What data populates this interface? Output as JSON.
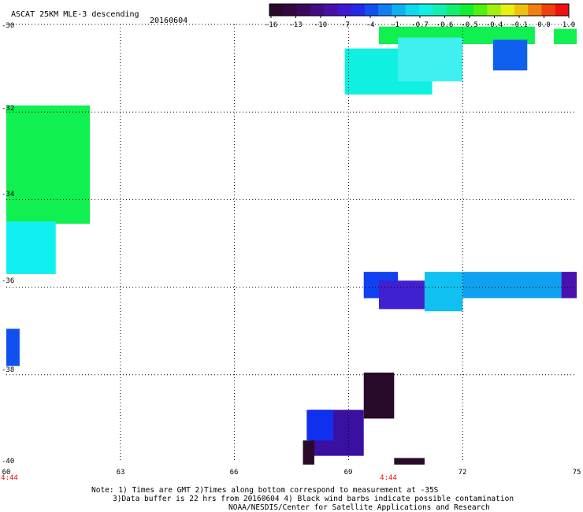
{
  "title": "ASCAT 25KM MLE-3 descending",
  "date": "20160604",
  "colorbar": {
    "tick_labels": [
      "-16",
      "-13",
      "-10",
      "-7",
      "-4",
      "-1",
      "-0.7",
      "-0.6",
      "-0.5",
      "-0.4",
      "-0.1",
      "0.0",
      "1.0"
    ],
    "colors": [
      "#2a0a2a",
      "#3a0a6a",
      "#4a10b0",
      "#3020e0",
      "#1060f0",
      "#10a0f0",
      "#10e0f0",
      "#10f0c0",
      "#10f050",
      "#80f010",
      "#f0f010",
      "#f0a010",
      "#f02010"
    ]
  },
  "axes": {
    "lat_labels": [
      "-30",
      "-32",
      "-34",
      "-36",
      "-38",
      "-40"
    ],
    "lon_labels": [
      "60",
      "63",
      "66",
      "69",
      "72",
      "75"
    ],
    "time_labels": [
      "4:44",
      "4:44"
    ],
    "lat_range": [
      -40,
      -30
    ],
    "lon_range": [
      60,
      75
    ]
  },
  "notes": {
    "line1": "Note: 1) Times are GMT 2)Times along bottom correspond to measurement at -35S",
    "line2": "3)Data buffer is 22 hrs from 20160604 4) Black wind barbs indicate possible contamination",
    "line3": "NOAA/NESDIS/Center for Satellite Applications and Research"
  },
  "swaths": [
    {
      "name": "upper-right-swath-green",
      "lon": [
        69.8,
        73.9
      ],
      "lat": [
        -30.45,
        -30.05
      ],
      "color": "#10f050"
    },
    {
      "name": "upper-right-swath-cyan",
      "lon": [
        68.9,
        71.2
      ],
      "lat": [
        -31.6,
        -30.55
      ],
      "color": "#10f0e0"
    },
    {
      "name": "upper-right-swath-lightcyan",
      "lon": [
        70.3,
        72.0
      ],
      "lat": [
        -31.3,
        -30.3
      ],
      "color": "#40f0f0"
    },
    {
      "name": "upper-right-swath-blue",
      "lon": [
        72.8,
        73.7
      ],
      "lat": [
        -31.05,
        -30.35
      ],
      "color": "#1060f0"
    },
    {
      "name": "upper-right-swath-green2",
      "lon": [
        74.4,
        75.0
      ],
      "lat": [
        -30.45,
        -30.1
      ],
      "color": "#10f050"
    },
    {
      "name": "left-swath-green",
      "lon": [
        60.0,
        62.2
      ],
      "lat": [
        -34.55,
        -31.85
      ],
      "color": "#10f050"
    },
    {
      "name": "left-swath-cyan",
      "lon": [
        60.0,
        61.3
      ],
      "lat": [
        -35.7,
        -34.5
      ],
      "color": "#10f0f0"
    },
    {
      "name": "left-swath-blue",
      "lon": [
        60.0,
        60.35
      ],
      "lat": [
        -37.8,
        -36.95
      ],
      "color": "#1050f0"
    },
    {
      "name": "mid-right-swath-blue",
      "lon": [
        69.4,
        70.3
      ],
      "lat": [
        -36.25,
        -35.65
      ],
      "color": "#1040f0"
    },
    {
      "name": "mid-right-swath-violet",
      "lon": [
        69.8,
        71.0
      ],
      "lat": [
        -36.5,
        -35.85
      ],
      "color": "#4020d0"
    },
    {
      "name": "mid-right-swath-cyan",
      "lon": [
        71.0,
        72.0
      ],
      "lat": [
        -36.55,
        -35.65
      ],
      "color": "#10c0f0"
    },
    {
      "name": "mid-right-swath-lightblue",
      "lon": [
        72.0,
        75.0
      ],
      "lat": [
        -36.25,
        -35.65
      ],
      "color": "#10a0f0"
    },
    {
      "name": "mid-right-swath-purple",
      "lon": [
        74.6,
        75.0
      ],
      "lat": [
        -36.25,
        -35.65
      ],
      "color": "#4a10b0"
    },
    {
      "name": "bottom-swath-dark",
      "lon": [
        69.4,
        70.2
      ],
      "lat": [
        -39.0,
        -37.95
      ],
      "color": "#2a0a2a"
    },
    {
      "name": "bottom-swath-purple",
      "lon": [
        68.0,
        69.4
      ],
      "lat": [
        -39.85,
        -38.8
      ],
      "color": "#3a10a0"
    },
    {
      "name": "bottom-swath-blue",
      "lon": [
        67.9,
        68.6
      ],
      "lat": [
        -39.5,
        -38.8
      ],
      "color": "#1030f0"
    },
    {
      "name": "bottom-swath-dark2",
      "lon": [
        67.8,
        68.1
      ],
      "lat": [
        -40.05,
        -39.5
      ],
      "color": "#2a0a2a"
    },
    {
      "name": "bottom-swath-dark3",
      "lon": [
        70.2,
        71.0
      ],
      "lat": [
        -40.05,
        -39.9
      ],
      "color": "#2a0a2a"
    }
  ]
}
